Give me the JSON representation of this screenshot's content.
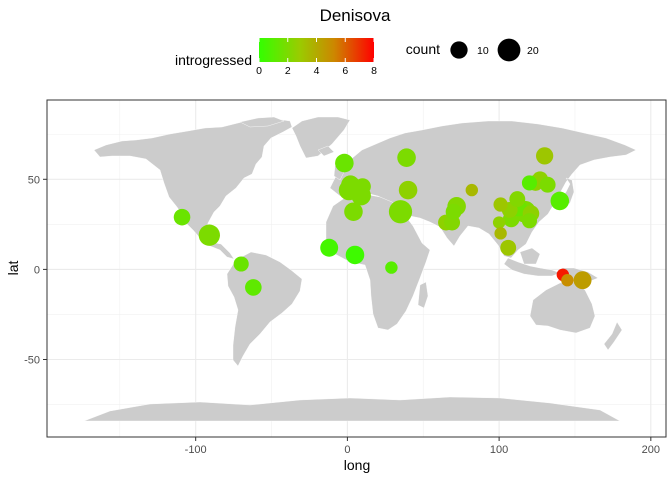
{
  "chart_data": {
    "type": "scatter",
    "title": "Denisova",
    "xlabel": "long",
    "ylabel": "lat",
    "xlim": [
      -198,
      210
    ],
    "ylim": [
      -93,
      94
    ],
    "x_ticks": [
      -100,
      0,
      100,
      200
    ],
    "x_tick_labels": [
      "-100",
      "0",
      "100",
      "200"
    ],
    "y_ticks": [
      -50,
      0,
      50
    ],
    "y_tick_labels": [
      "-50",
      "0",
      "50"
    ],
    "grid": true,
    "background": "world-map-land-light-grey",
    "legend": {
      "placement": "top",
      "color": {
        "title": "introgressed",
        "min": 0,
        "max": 8,
        "ticks": [
          0,
          2,
          4,
          6,
          8
        ],
        "tick_labels": [
          "0",
          "2",
          "4",
          "6",
          "8"
        ],
        "colors": [
          "#33ff00",
          "#99cc00",
          "#cc8800",
          "#ff0000"
        ]
      },
      "size": {
        "title": "count",
        "values": [
          10,
          20
        ],
        "labels": [
          "10",
          "20"
        ]
      }
    },
    "points": [
      {
        "x": -109,
        "y": 29,
        "count": 9,
        "introgressed": 1.5
      },
      {
        "x": -91,
        "y": 19,
        "count": 17,
        "introgressed": 2.0
      },
      {
        "x": -70,
        "y": 3,
        "count": 7,
        "introgressed": 1.5
      },
      {
        "x": -62,
        "y": -10,
        "count": 9,
        "introgressed": 1.2
      },
      {
        "x": -12,
        "y": 12,
        "count": 11,
        "introgressed": 0.5
      },
      {
        "x": 5,
        "y": 8,
        "count": 12,
        "introgressed": 0.3
      },
      {
        "x": 29,
        "y": 1,
        "count": 4,
        "introgressed": 1.0
      },
      {
        "x": -2,
        "y": 59,
        "count": 12,
        "introgressed": 1.5
      },
      {
        "x": 39,
        "y": 62,
        "count": 12,
        "introgressed": 2.0
      },
      {
        "x": 2,
        "y": 47,
        "count": 12,
        "introgressed": 2.0
      },
      {
        "x": 1,
        "y": 44,
        "count": 15,
        "introgressed": 2.0
      },
      {
        "x": 3,
        "y": 45,
        "count": 18,
        "introgressed": 2.2
      },
      {
        "x": 10,
        "y": 46,
        "count": 9,
        "introgressed": 2.0
      },
      {
        "x": 9,
        "y": 41,
        "count": 14,
        "introgressed": 2.0
      },
      {
        "x": 4,
        "y": 32,
        "count": 12,
        "introgressed": 2.0
      },
      {
        "x": 35,
        "y": 32,
        "count": 21,
        "introgressed": 2.0
      },
      {
        "x": 40,
        "y": 44,
        "count": 12,
        "introgressed": 2.5
      },
      {
        "x": 82,
        "y": 44,
        "count": 4,
        "introgressed": 3.5
      },
      {
        "x": 65,
        "y": 26,
        "count": 8,
        "introgressed": 2.5
      },
      {
        "x": 69,
        "y": 26,
        "count": 8,
        "introgressed": 2.2
      },
      {
        "x": 72,
        "y": 35,
        "count": 12,
        "introgressed": 2.2
      },
      {
        "x": 70,
        "y": 32,
        "count": 8,
        "introgressed": 2.0
      },
      {
        "x": 101,
        "y": 36,
        "count": 6,
        "introgressed": 3.0
      },
      {
        "x": 100,
        "y": 26,
        "count": 4,
        "introgressed": 2.5
      },
      {
        "x": 101,
        "y": 20,
        "count": 4,
        "introgressed": 3.5
      },
      {
        "x": 106,
        "y": 12,
        "count": 8,
        "introgressed": 3.0
      },
      {
        "x": 107,
        "y": 33,
        "count": 8,
        "introgressed": 2.5
      },
      {
        "x": 108,
        "y": 28,
        "count": 9,
        "introgressed": 2.0
      },
      {
        "x": 113,
        "y": 34,
        "count": 9,
        "introgressed": 1.5
      },
      {
        "x": 117,
        "y": 32,
        "count": 18,
        "introgressed": 2.0
      },
      {
        "x": 112,
        "y": 39,
        "count": 8,
        "introgressed": 2.2
      },
      {
        "x": 120,
        "y": 27,
        "count": 7,
        "introgressed": 2.0
      },
      {
        "x": 121,
        "y": 31,
        "count": 9,
        "introgressed": 2.5
      },
      {
        "x": 120,
        "y": 48,
        "count": 7,
        "introgressed": 1.0
      },
      {
        "x": 124,
        "y": 48,
        "count": 8,
        "introgressed": 2.5
      },
      {
        "x": 127,
        "y": 50,
        "count": 8,
        "introgressed": 2.5
      },
      {
        "x": 132,
        "y": 47,
        "count": 8,
        "introgressed": 2.0
      },
      {
        "x": 130,
        "y": 63,
        "count": 10,
        "introgressed": 3.0
      },
      {
        "x": 140,
        "y": 38,
        "count": 12,
        "introgressed": 1.0
      },
      {
        "x": 142,
        "y": -3,
        "count": 4,
        "introgressed": 7.5
      },
      {
        "x": 145,
        "y": -6,
        "count": 4,
        "introgressed": 5.0
      },
      {
        "x": 155,
        "y": -6,
        "count": 11,
        "introgressed": 4.5
      }
    ]
  }
}
